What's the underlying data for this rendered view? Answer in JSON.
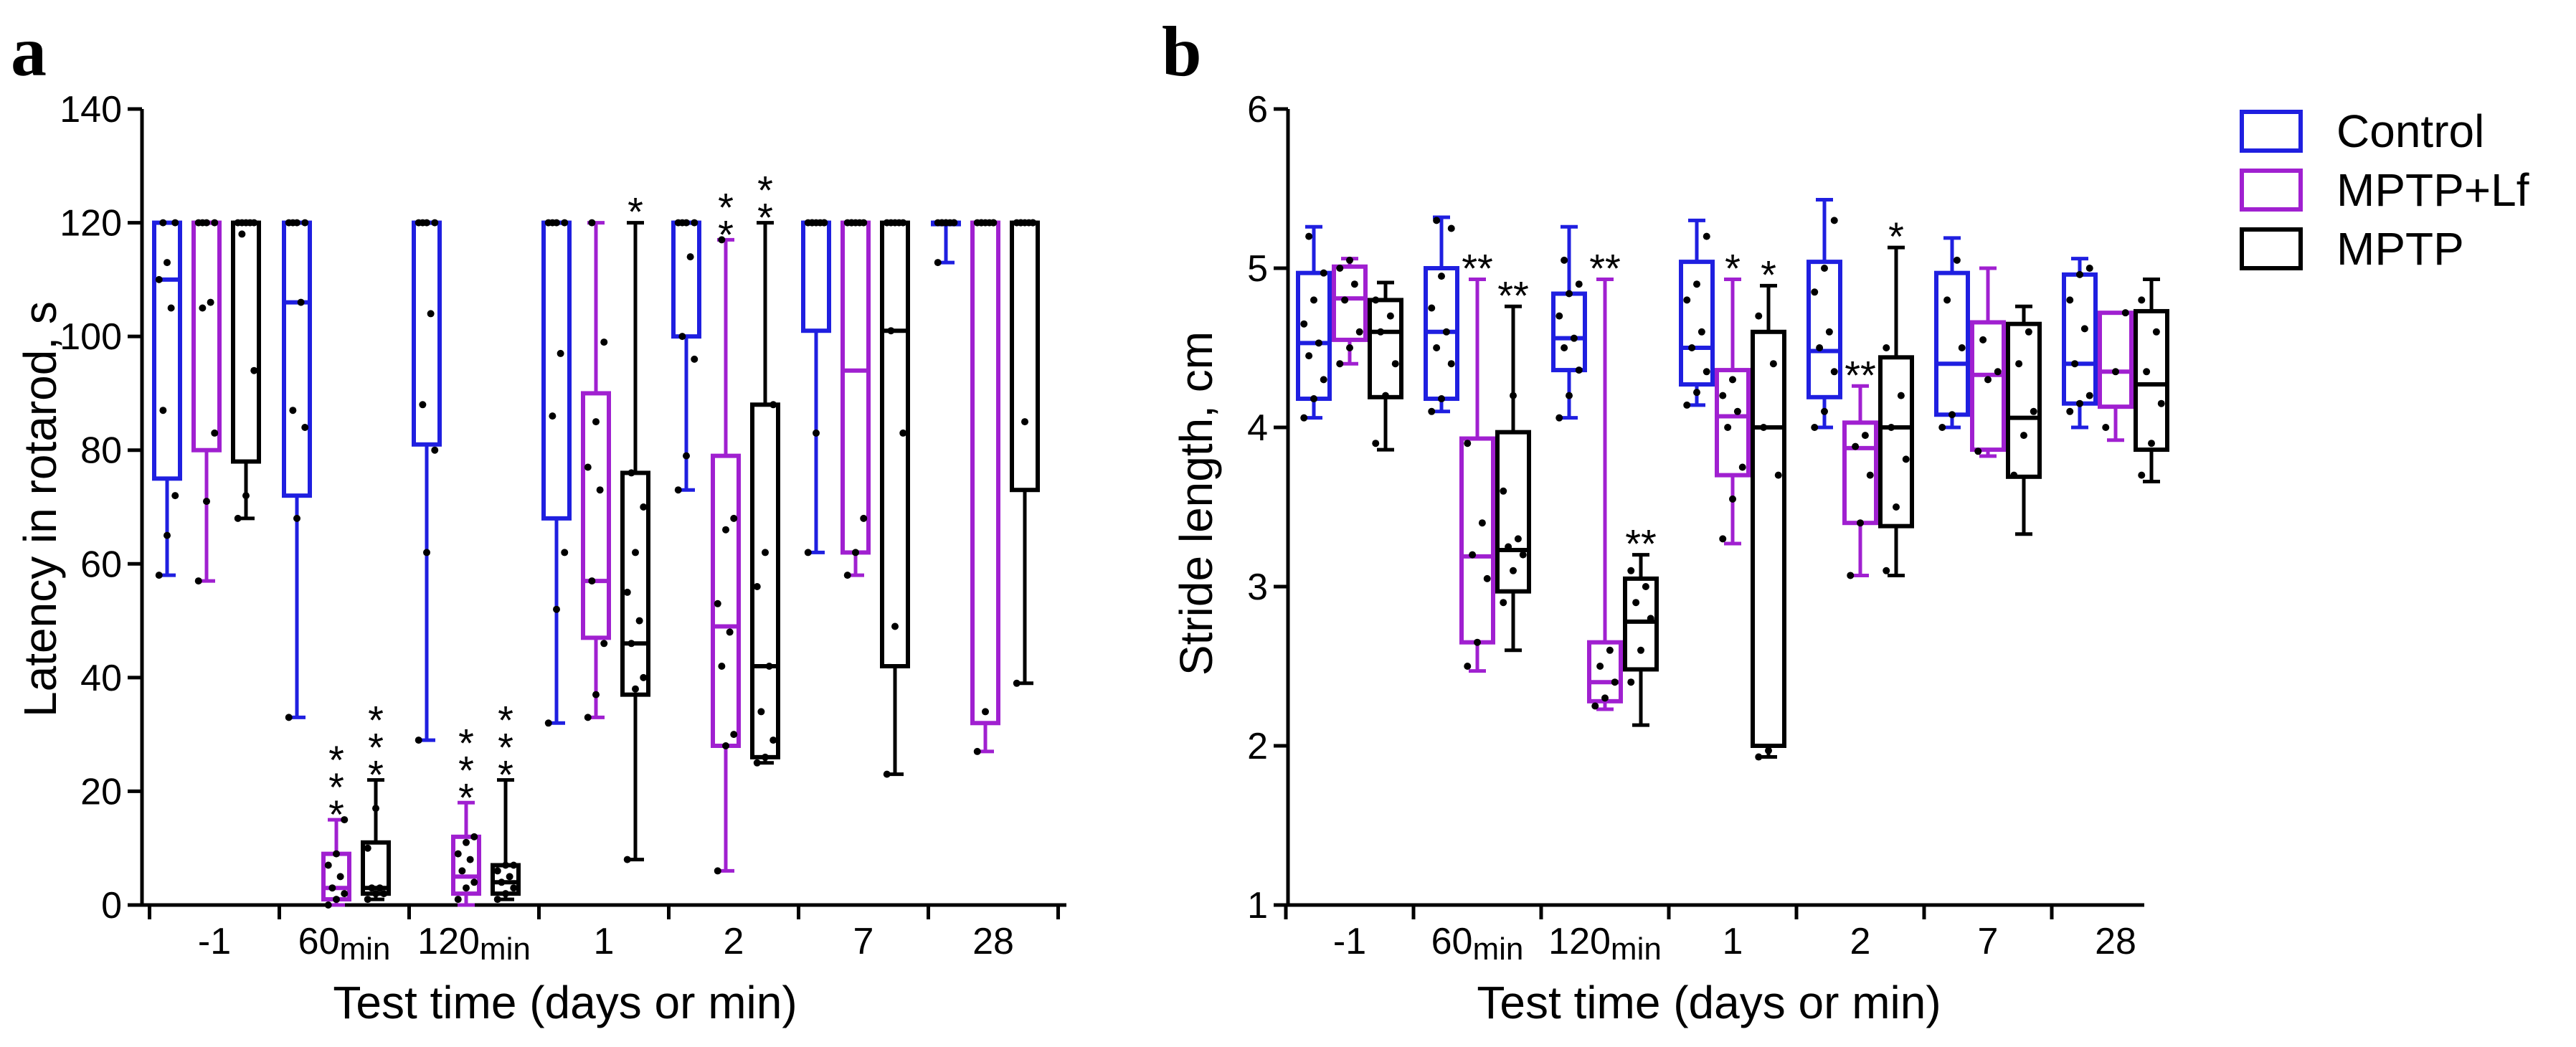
{
  "chart_data": [
    {
      "type": "boxplot",
      "panel_label": "a",
      "title": "",
      "xlabel": "Test  time (days or min)",
      "ylabel": "Latency in rotarod, s",
      "ylim": [
        0,
        140
      ],
      "yticks": [
        "0",
        "20",
        "40",
        "60",
        "80",
        "100",
        "120",
        "140"
      ],
      "categories": [
        {
          "main": "-1",
          "sub": ""
        },
        {
          "main": "60",
          "sub": "min"
        },
        {
          "main": "120",
          "sub": "min"
        },
        {
          "main": "1",
          "sub": ""
        },
        {
          "main": "2",
          "sub": ""
        },
        {
          "main": "7",
          "sub": ""
        },
        {
          "main": "28",
          "sub": ""
        }
      ],
      "series": [
        {
          "name": "Control",
          "color": "#1f1fe0",
          "boxes": [
            {
              "min": 58,
              "q1": 75,
              "median": 110,
              "q3": 120,
              "max": 120,
              "points": [
                58,
                65,
                72,
                87,
                105,
                110,
                113,
                120,
                120
              ],
              "sig": ""
            },
            {
              "min": 33,
              "q1": 72,
              "median": 106,
              "q3": 120,
              "max": 120,
              "points": [
                33,
                68,
                84,
                87,
                106,
                120,
                120,
                120,
                120
              ],
              "sig": ""
            },
            {
              "min": 29,
              "q1": 81,
              "median": 120,
              "q3": 120,
              "max": 120,
              "points": [
                29,
                62,
                80,
                88,
                104,
                120,
                120,
                120,
                120
              ],
              "sig": ""
            },
            {
              "min": 32,
              "q1": 68,
              "median": 120,
              "q3": 120,
              "max": 120,
              "points": [
                32,
                52,
                62,
                86,
                97,
                120,
                120,
                120,
                120
              ],
              "sig": ""
            },
            {
              "min": 73,
              "q1": 100,
              "median": 120,
              "q3": 120,
              "max": 120,
              "points": [
                73,
                79,
                96,
                100,
                114,
                120,
                120,
                120,
                120
              ],
              "sig": ""
            },
            {
              "min": 62,
              "q1": 101,
              "median": 120,
              "q3": 120,
              "max": 120,
              "points": [
                62,
                83,
                120,
                120,
                120,
                120,
                120,
                120,
                120
              ],
              "sig": ""
            },
            {
              "min": 113,
              "q1": 120,
              "median": 120,
              "q3": 120,
              "max": 120,
              "points": [
                113,
                120,
                120,
                120,
                120,
                120,
                120,
                120,
                120
              ],
              "sig": ""
            }
          ]
        },
        {
          "name": "MPTP+Lf",
          "color": "#a020d0",
          "boxes": [
            {
              "min": 57,
              "q1": 80,
              "median": 120,
              "q3": 120,
              "max": 120,
              "points": [
                57,
                71,
                83,
                105,
                106,
                120,
                120,
                120,
                120
              ],
              "sig": ""
            },
            {
              "min": 0,
              "q1": 1,
              "median": 3,
              "q3": 9,
              "max": 15,
              "points": [
                0,
                1,
                2,
                3,
                5,
                7,
                9,
                15
              ],
              "sig": "***"
            },
            {
              "min": 0,
              "q1": 2,
              "median": 5,
              "q3": 12,
              "max": 18,
              "points": [
                1,
                3,
                4,
                6,
                8,
                9,
                11,
                12
              ],
              "sig": "***"
            },
            {
              "min": 33,
              "q1": 47,
              "median": 57,
              "q3": 90,
              "max": 120,
              "points": [
                33,
                37,
                46,
                57,
                73,
                77,
                85,
                99,
                120
              ],
              "sig": ""
            },
            {
              "min": 6,
              "q1": 28,
              "median": 49,
              "q3": 79,
              "max": 117,
              "points": [
                6,
                28,
                30,
                42,
                48,
                53,
                66,
                68,
                117
              ],
              "sig": "**"
            },
            {
              "min": 58,
              "q1": 62,
              "median": 94,
              "q3": 120,
              "max": 120,
              "points": [
                58,
                62,
                68,
                120,
                120,
                120,
                120,
                120,
                120
              ],
              "sig": ""
            },
            {
              "min": 27,
              "q1": 32,
              "median": 120,
              "q3": 120,
              "max": 120,
              "points": [
                27,
                34,
                120,
                120,
                120,
                120,
                120,
                120,
                120
              ],
              "sig": ""
            }
          ]
        },
        {
          "name": "MPTP",
          "color": "#000000",
          "boxes": [
            {
              "min": 68,
              "q1": 78,
              "median": 120,
              "q3": 120,
              "max": 120,
              "points": [
                68,
                72,
                94,
                118,
                120,
                120,
                120,
                120,
                120
              ],
              "sig": ""
            },
            {
              "min": 1,
              "q1": 2,
              "median": 3,
              "q3": 11,
              "max": 22,
              "points": [
                1,
                2,
                2,
                3,
                3,
                10,
                17
              ],
              "sig": "***"
            },
            {
              "min": 1,
              "q1": 2,
              "median": 4,
              "q3": 7,
              "max": 22,
              "points": [
                1,
                2,
                3,
                4,
                5,
                6,
                7,
                7
              ],
              "sig": "***"
            },
            {
              "min": 8,
              "q1": 37,
              "median": 46,
              "q3": 76,
              "max": 120,
              "points": [
                8,
                38,
                40,
                46,
                50,
                55,
                62,
                70,
                76
              ],
              "sig": "*"
            },
            {
              "min": 25,
              "q1": 26,
              "median": 42,
              "q3": 88,
              "max": 120,
              "points": [
                25,
                26,
                29,
                34,
                42,
                56,
                62,
                88
              ],
              "sig": "**"
            },
            {
              "min": 23,
              "q1": 42,
              "median": 101,
              "q3": 120,
              "max": 120,
              "points": [
                23,
                49,
                83,
                101,
                120,
                120,
                120,
                120,
                120
              ],
              "sig": ""
            },
            {
              "min": 39,
              "q1": 73,
              "median": 120,
              "q3": 120,
              "max": 120,
              "points": [
                39,
                85,
                120,
                120,
                120,
                120,
                120,
                120,
                120
              ],
              "sig": ""
            }
          ]
        }
      ]
    },
    {
      "type": "boxplot",
      "panel_label": "b",
      "title": "",
      "xlabel": "Test  time (days or min)",
      "ylabel": "Stride length, cm",
      "ylim": [
        1,
        6
      ],
      "yticks": [
        "1",
        "2",
        "3",
        "4",
        "5",
        "6"
      ],
      "categories": [
        {
          "main": "-1",
          "sub": ""
        },
        {
          "main": "60",
          "sub": "min"
        },
        {
          "main": "120",
          "sub": "min"
        },
        {
          "main": "1",
          "sub": ""
        },
        {
          "main": "2",
          "sub": ""
        },
        {
          "main": "7",
          "sub": ""
        },
        {
          "main": "28",
          "sub": ""
        }
      ],
      "legend": {
        "position": "top-right",
        "entries": [
          "Control",
          "MPTP+Lf",
          "MPTP"
        ]
      },
      "series": [
        {
          "name": "Control",
          "color": "#1f1fe0",
          "boxes": [
            {
              "min": 4.06,
              "q1": 4.18,
              "median": 4.53,
              "q3": 4.97,
              "max": 5.26,
              "points": [
                4.06,
                4.18,
                4.3,
                4.45,
                4.53,
                4.65,
                4.8,
                4.97,
                5.2
              ],
              "sig": ""
            },
            {
              "min": 4.1,
              "q1": 4.18,
              "median": 4.6,
              "q3": 5.0,
              "max": 5.32,
              "points": [
                4.1,
                4.18,
                4.4,
                4.5,
                4.6,
                4.75,
                4.95,
                5.25,
                5.3
              ],
              "sig": ""
            },
            {
              "min": 4.06,
              "q1": 4.36,
              "median": 4.56,
              "q3": 4.84,
              "max": 5.26,
              "points": [
                4.06,
                4.2,
                4.36,
                4.5,
                4.56,
                4.7,
                4.84,
                4.9,
                5.05
              ],
              "sig": ""
            },
            {
              "min": 4.14,
              "q1": 4.27,
              "median": 4.5,
              "q3": 5.04,
              "max": 5.3,
              "points": [
                4.14,
                4.22,
                4.35,
                4.5,
                4.6,
                4.8,
                4.9,
                5.2
              ],
              "sig": ""
            },
            {
              "min": 4.0,
              "q1": 4.19,
              "median": 4.48,
              "q3": 5.04,
              "max": 5.43,
              "points": [
                4.0,
                4.1,
                4.35,
                4.5,
                4.6,
                4.85,
                5.0,
                5.3
              ],
              "sig": ""
            },
            {
              "min": 4.0,
              "q1": 4.08,
              "median": 4.4,
              "q3": 4.97,
              "max": 5.19,
              "points": [
                4.0,
                4.08,
                4.5,
                4.8,
                5.05
              ],
              "sig": ""
            },
            {
              "min": 4.0,
              "q1": 4.15,
              "median": 4.4,
              "q3": 4.96,
              "max": 5.06,
              "points": [
                4.1,
                4.15,
                4.2,
                4.4,
                4.62,
                4.8,
                4.96,
                5.0
              ],
              "sig": ""
            }
          ]
        },
        {
          "name": "MPTP+Lf",
          "color": "#a020d0",
          "boxes": [
            {
              "min": 4.4,
              "q1": 4.55,
              "median": 4.81,
              "q3": 5.01,
              "max": 5.06,
              "points": [
                4.4,
                4.5,
                4.6,
                4.8,
                4.9,
                5.0,
                5.05
              ],
              "sig": ""
            },
            {
              "min": 2.47,
              "q1": 2.65,
              "median": 3.19,
              "q3": 3.93,
              "max": 4.93,
              "points": [
                2.5,
                2.65,
                3.05,
                3.2,
                3.4,
                3.9
              ],
              "sig": "**"
            },
            {
              "min": 2.23,
              "q1": 2.28,
              "median": 2.4,
              "q3": 2.65,
              "max": 4.93,
              "points": [
                2.25,
                2.3,
                2.4,
                2.5,
                2.6
              ],
              "sig": "**"
            },
            {
              "min": 3.27,
              "q1": 3.7,
              "median": 4.07,
              "q3": 4.36,
              "max": 4.93,
              "points": [
                3.3,
                3.55,
                3.75,
                4.0,
                4.1,
                4.2,
                4.3
              ],
              "sig": "*"
            },
            {
              "min": 3.07,
              "q1": 3.4,
              "median": 3.87,
              "q3": 4.03,
              "max": 4.26,
              "points": [
                3.07,
                3.4,
                3.7,
                3.88,
                3.95
              ],
              "sig": "**"
            },
            {
              "min": 3.82,
              "q1": 3.86,
              "median": 4.33,
              "q3": 4.66,
              "max": 5.0,
              "points": [
                3.85,
                4.3,
                4.35,
                4.55
              ],
              "sig": ""
            },
            {
              "min": 3.92,
              "q1": 4.13,
              "median": 4.35,
              "q3": 4.72,
              "max": 4.72,
              "points": [
                4.0,
                4.35,
                4.72
              ],
              "sig": ""
            }
          ]
        },
        {
          "name": "MPTP",
          "color": "#000000",
          "boxes": [
            {
              "min": 3.86,
              "q1": 4.19,
              "median": 4.6,
              "q3": 4.8,
              "max": 4.91,
              "points": [
                3.9,
                4.2,
                4.4,
                4.6,
                4.7,
                4.8
              ],
              "sig": ""
            },
            {
              "min": 2.6,
              "q1": 2.97,
              "median": 3.23,
              "q3": 3.97,
              "max": 4.76,
              "points": [
                2.9,
                3.1,
                3.2,
                3.25,
                3.3,
                3.6,
                4.2
              ],
              "sig": "**"
            },
            {
              "min": 2.13,
              "q1": 2.48,
              "median": 2.78,
              "q3": 3.05,
              "max": 3.2,
              "points": [
                2.4,
                2.6,
                2.8,
                2.9,
                3.0,
                3.1
              ],
              "sig": "**"
            },
            {
              "min": 1.93,
              "q1": 2.0,
              "median": 4.0,
              "q3": 4.6,
              "max": 4.89,
              "points": [
                1.93,
                1.97,
                3.7,
                4.0,
                4.4,
                4.7
              ],
              "sig": "*"
            },
            {
              "min": 3.07,
              "q1": 3.38,
              "median": 4.0,
              "q3": 4.44,
              "max": 5.13,
              "points": [
                3.1,
                3.5,
                3.8,
                4.0,
                4.2,
                4.5
              ],
              "sig": "*"
            },
            {
              "min": 3.33,
              "q1": 3.69,
              "median": 4.06,
              "q3": 4.65,
              "max": 4.76,
              "points": [
                3.7,
                3.95,
                4.1,
                4.4,
                4.6
              ],
              "sig": ""
            },
            {
              "min": 3.66,
              "q1": 3.86,
              "median": 4.27,
              "q3": 4.73,
              "max": 4.93,
              "points": [
                3.7,
                3.9,
                4.15,
                4.35,
                4.6,
                4.8
              ],
              "sig": ""
            }
          ]
        }
      ]
    }
  ]
}
